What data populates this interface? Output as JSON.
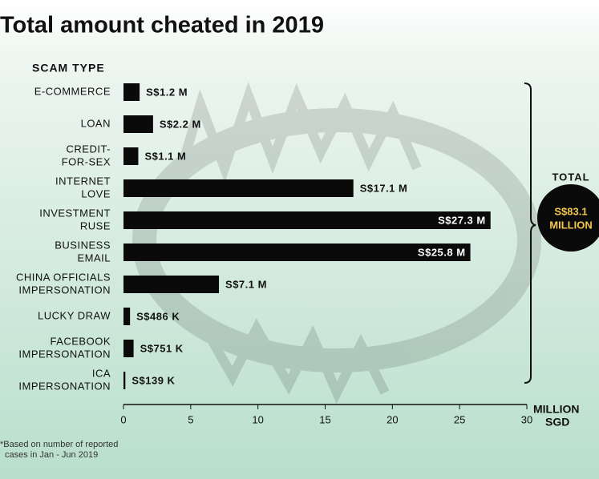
{
  "chart_data": {
    "type": "bar",
    "orientation": "horizontal",
    "title": "Total amount cheated in 2019",
    "category_header": "SCAM TYPE",
    "categories": [
      [
        "E-COMMERCE"
      ],
      [
        "LOAN"
      ],
      [
        "CREDIT-",
        "FOR-SEX"
      ],
      [
        "INTERNET",
        "LOVE"
      ],
      [
        "INVESTMENT",
        "RUSE"
      ],
      [
        "BUSINESS",
        "EMAIL"
      ],
      [
        "CHINA OFFICIALS",
        "IMPERSONATION"
      ],
      [
        "LUCKY DRAW"
      ],
      [
        "FACEBOOK",
        "IMPERSONATION"
      ],
      [
        "ICA",
        "IMPERSONATION"
      ]
    ],
    "values": [
      1.2,
      2.2,
      1.1,
      17.1,
      27.3,
      25.8,
      7.1,
      0.486,
      0.751,
      0.139
    ],
    "value_labels": [
      "S$1.2 M",
      "S$2.2 M",
      "S$1.1 M",
      "S$17.1 M",
      "S$27.3 M",
      "S$25.8 M",
      "S$7.1 M",
      "S$486 K",
      "S$751 K",
      "S$139 K"
    ],
    "color": "#0a0a0a",
    "xlim": [
      0,
      30
    ],
    "xticks": [
      0,
      5,
      10,
      15,
      20,
      25,
      30
    ],
    "x_label": [
      "MILLION",
      "SGD"
    ],
    "total_label": "TOTAL",
    "total_value": [
      "S$83.1",
      "MILLION"
    ],
    "footnote": [
      "*Based on number of reported",
      "cases in Jan - Jun 2019"
    ]
  }
}
